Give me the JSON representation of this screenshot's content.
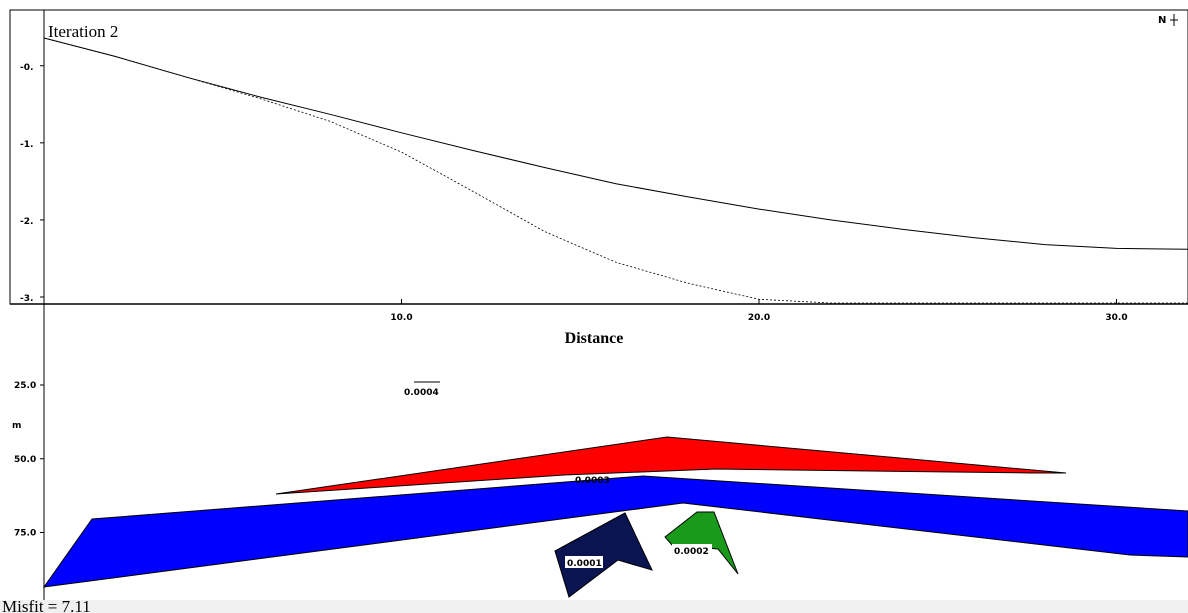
{
  "profile": {
    "iteration_label": "Iteration 2",
    "north_label": "N",
    "x_ticks": [
      {
        "value": 10,
        "label": "10.0"
      },
      {
        "value": 20,
        "label": "20.0"
      },
      {
        "value": 30,
        "label": "30.0"
      }
    ],
    "y_ticks": [
      {
        "value": -0.3,
        "label": "-0."
      },
      {
        "value": -1.3,
        "label": "-1."
      },
      {
        "value": -2.3,
        "label": "-2."
      },
      {
        "value": -3.3,
        "label": "-3."
      }
    ],
    "x_axis_title": "Distance",
    "observed_curve": {
      "x": [
        0,
        2,
        4,
        6,
        8,
        10,
        12,
        14,
        16,
        18,
        20,
        22,
        24,
        26,
        28,
        30,
        32
      ],
      "y": [
        0.06,
        -0.18,
        -0.45,
        -0.7,
        -0.93,
        -1.17,
        -1.4,
        -1.62,
        -1.83,
        -2.0,
        -2.16,
        -2.3,
        -2.42,
        -2.53,
        -2.62,
        -2.67,
        -2.68
      ]
    },
    "calculated_curve": {
      "x": [
        0,
        2,
        4,
        6,
        8,
        10,
        12,
        14,
        16,
        18,
        20,
        22,
        24,
        26,
        28,
        30,
        32
      ],
      "y": [
        0.06,
        -0.18,
        -0.45,
        -0.72,
        -1.02,
        -1.42,
        -1.93,
        -2.45,
        -2.85,
        -3.12,
        -3.33,
        -3.5,
        -3.62,
        -3.71,
        -3.77,
        -3.8,
        -3.81
      ]
    }
  },
  "section": {
    "depth_ticks": [
      {
        "value": 25,
        "label": "25.0"
      },
      {
        "value": 50,
        "label": "50.0"
      },
      {
        "value": 75,
        "label": "75.0"
      }
    ],
    "depth_unit": "m",
    "floating_label": "0.0004",
    "bodies": [
      {
        "name": "red-body",
        "color": "#ff0000",
        "label": "0.0003"
      },
      {
        "name": "blue-body",
        "color": "#0000ff",
        "label": ""
      },
      {
        "name": "navy-body",
        "color": "#0a1450",
        "label": "0.0001"
      },
      {
        "name": "green-body",
        "color": "#1a9a1a",
        "label": "0.0002"
      }
    ]
  },
  "footer": {
    "misfit_label": "Misfit = 7.11"
  }
}
